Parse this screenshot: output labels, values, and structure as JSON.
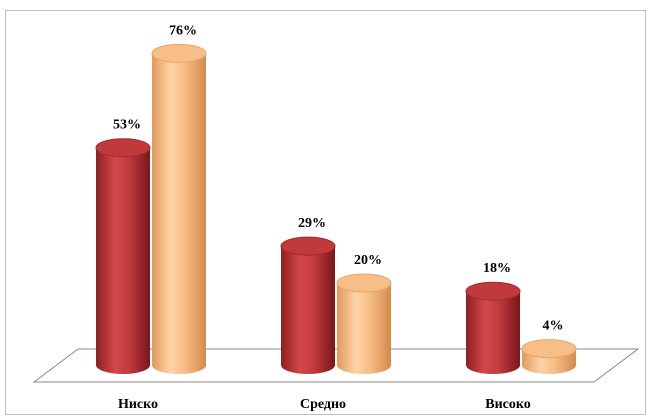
{
  "chart_data": {
    "type": "bar",
    "style": "3d-cylinder",
    "categories": [
      "Ниско",
      "Средно",
      "Високо"
    ],
    "series": [
      {
        "values": [
          53,
          29,
          18
        ],
        "labels": [
          "53%",
          "29%",
          "18%"
        ]
      },
      {
        "values": [
          76,
          20,
          4
        ],
        "labels": [
          "76%",
          "20%",
          "4%"
        ]
      }
    ],
    "unit": "%",
    "ylim": [
      0,
      80
    ],
    "grid": false,
    "legend": "none"
  },
  "colors": {
    "series_1": "#c0393b",
    "series_2": "#f7be87",
    "floor": "#ffffff",
    "floor_stroke": "#888888"
  }
}
